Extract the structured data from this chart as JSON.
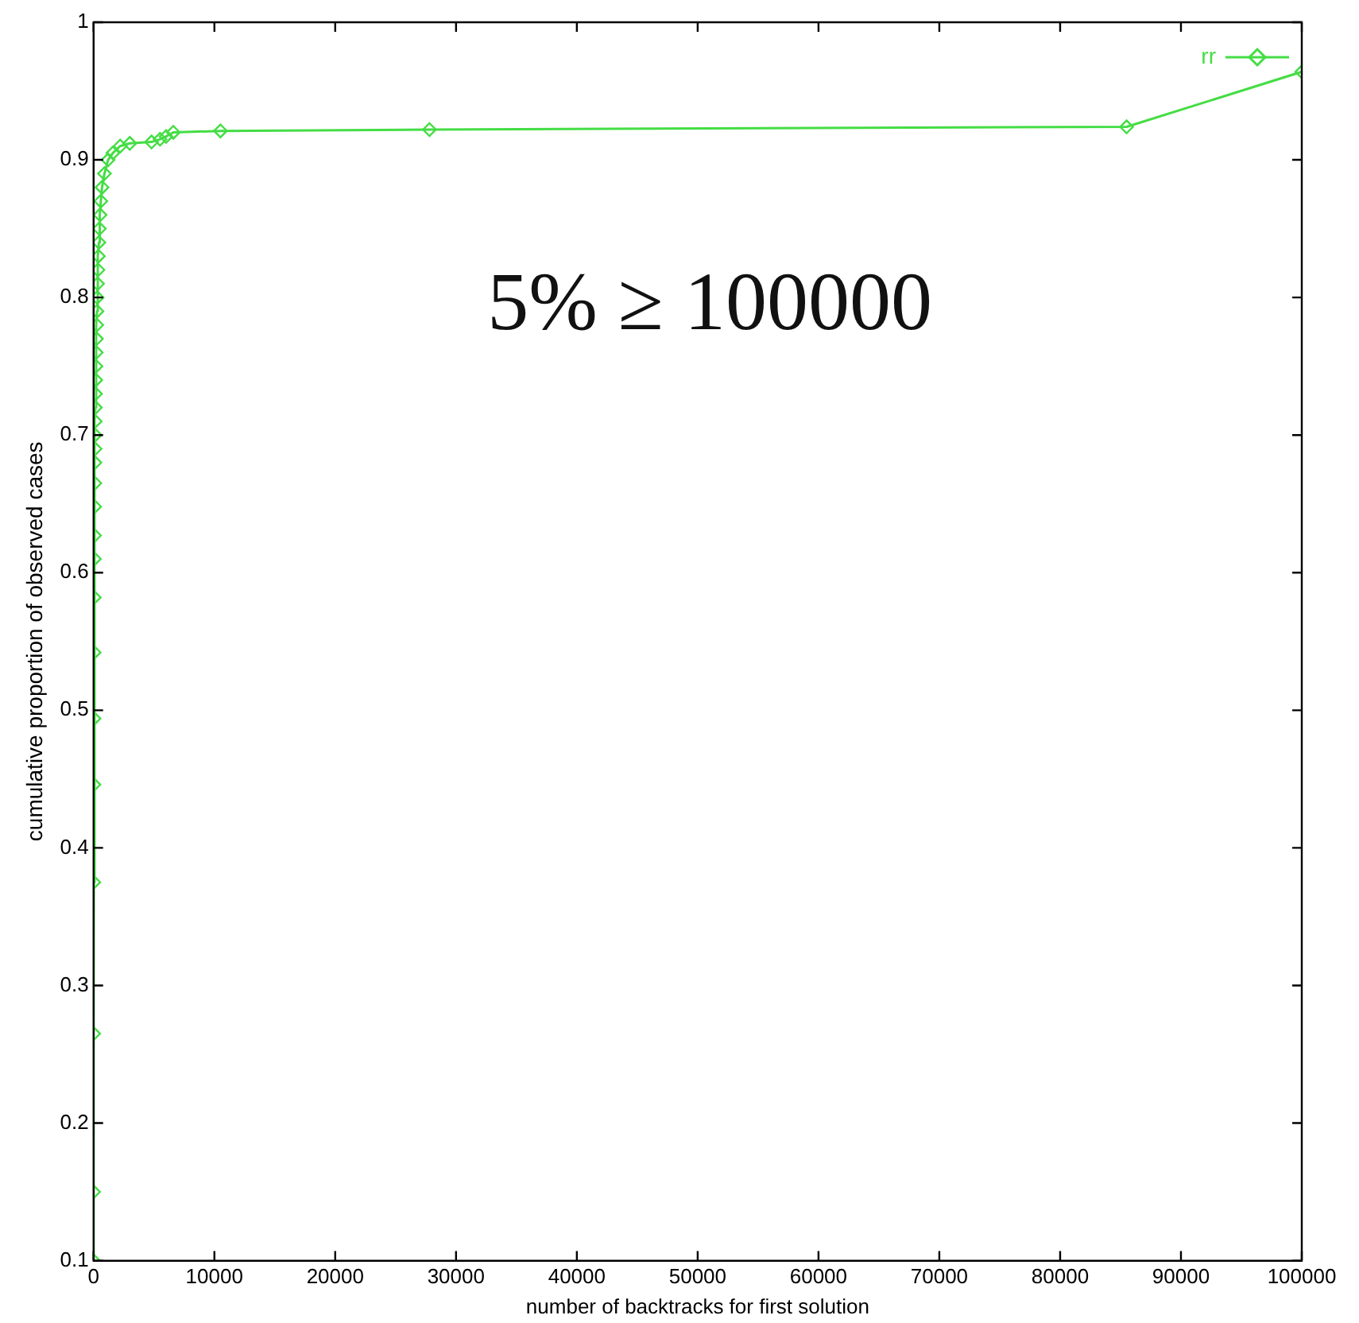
{
  "chart_data": {
    "type": "line",
    "xlabel": "number of backtracks for first solution",
    "ylabel": "cumulative proportion of observed cases",
    "annotations": [
      "5% ≥ 100000"
    ],
    "x": [
      0,
      0,
      10,
      20,
      30,
      40,
      50,
      60,
      70,
      80,
      90,
      100,
      110,
      120,
      130,
      140,
      150,
      160,
      180,
      200,
      220,
      240,
      260,
      280,
      300,
      330,
      360,
      400,
      440,
      480,
      540,
      600,
      700,
      900,
      1200,
      1600,
      2200,
      3000,
      4800,
      5500,
      6000,
      6600,
      10500,
      27800,
      85500,
      100000
    ],
    "series": [
      {
        "name": "rr",
        "color": "#44dd44",
        "values": [
          0.1,
          0.15,
          0.265,
          0.375,
          0.446,
          0.494,
          0.542,
          0.582,
          0.61,
          0.627,
          0.648,
          0.665,
          0.68,
          0.69,
          0.7,
          0.71,
          0.72,
          0.73,
          0.74,
          0.75,
          0.76,
          0.77,
          0.78,
          0.79,
          0.8,
          0.81,
          0.82,
          0.83,
          0.84,
          0.85,
          0.86,
          0.87,
          0.88,
          0.89,
          0.9,
          0.905,
          0.91,
          0.912,
          0.913,
          0.915,
          0.917,
          0.92,
          0.921,
          0.922,
          0.924,
          0.964
        ]
      }
    ],
    "xlim": [
      0,
      100000
    ],
    "xticks": [
      0,
      10000,
      20000,
      30000,
      40000,
      50000,
      60000,
      70000,
      80000,
      90000,
      100000
    ],
    "ylim": [
      0.1,
      1
    ],
    "yticks": [
      0.1,
      0.2,
      0.3,
      0.4,
      0.5,
      0.6,
      0.7,
      0.8,
      0.9,
      1
    ],
    "grid": false,
    "legend": "top right",
    "marker": "diamond",
    "line_style": "solid"
  }
}
